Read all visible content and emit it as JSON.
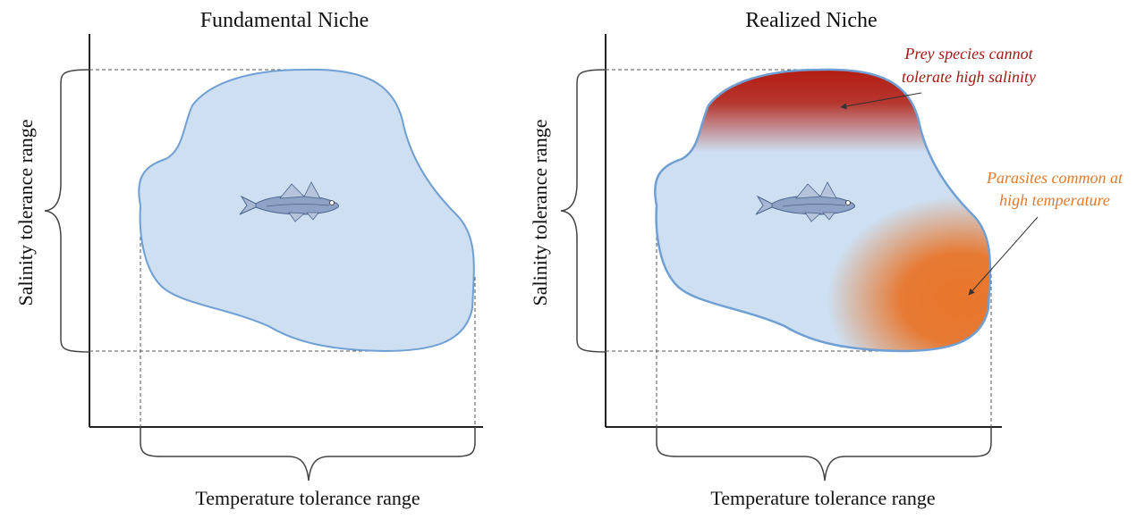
{
  "colors": {
    "niche_fill": "#cddff0",
    "niche_stroke": "#6f9fd3",
    "prey_zone": "#b2180c",
    "parasite_zone": "#e8752a",
    "prey_text": "#a11a14",
    "parasite_text": "#e07b2e",
    "axis": "#222222"
  },
  "panels": [
    {
      "title": "Fundamental Niche",
      "y_label": "Salinity  tolerance range",
      "x_label": "Temperature tolerance range",
      "fish_icon": "fish-icon"
    },
    {
      "title": "Realized Niche",
      "y_label": "Salinity  tolerance range",
      "x_label": "Temperature tolerance range",
      "fish_icon": "fish-icon",
      "annotations": {
        "prey_line1": "Prey species cannot",
        "prey_line2": "tolerate high salinity",
        "parasite_line1": "Parasites common at",
        "parasite_line2": "high temperature"
      }
    }
  ]
}
